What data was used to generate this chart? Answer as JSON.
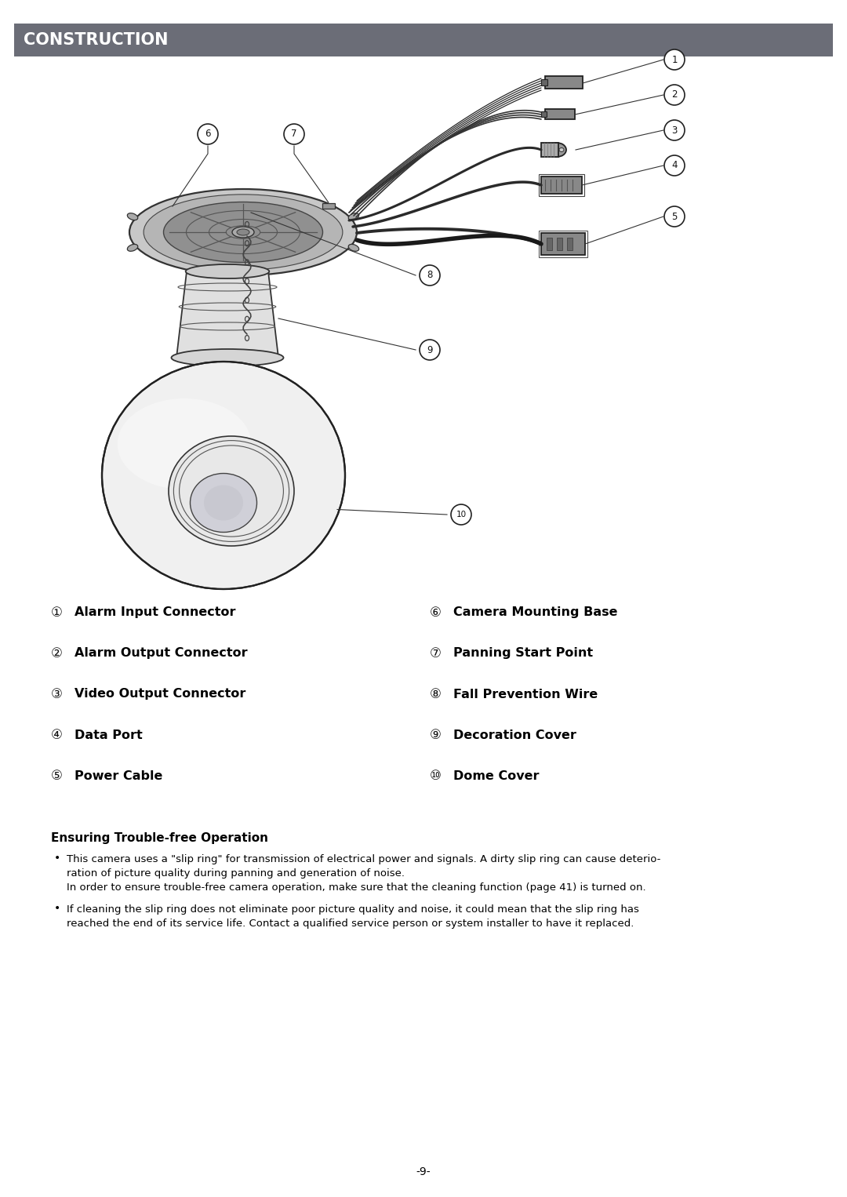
{
  "title": "CONSTRUCTION",
  "title_bg_color": "#6b6d77",
  "title_text_color": "#ffffff",
  "page_bg_color": "#ffffff",
  "page_number": "-9-",
  "left_labels": [
    {
      "num": "①",
      "text": "Alarm Input Connector"
    },
    {
      "num": "②",
      "text": "Alarm Output Connector"
    },
    {
      "num": "③",
      "text": "Video Output Connector"
    },
    {
      "num": "④",
      "text": "Data Port"
    },
    {
      "num": "⑤",
      "text": "Power Cable"
    }
  ],
  "right_labels": [
    {
      "num": "⑥",
      "text": "Camera Mounting Base"
    },
    {
      "num": "⑦",
      "text": "Panning Start Point"
    },
    {
      "num": "⑧",
      "text": "Fall Prevention Wire"
    },
    {
      "num": "⑨",
      "text": "Decoration Cover"
    },
    {
      "num": "⑩",
      "text": "Dome Cover"
    }
  ],
  "section_title": "Ensuring Trouble-free Operation",
  "bullet1_line1": "This camera uses a \"slip ring\" for transmission of electrical power and signals. A dirty slip ring can cause deterio-",
  "bullet1_line2": "ration of picture quality during panning and generation of noise.",
  "bullet1_line3": "In order to ensure trouble-free camera operation, make sure that the cleaning function (page 41) is turned on.",
  "bullet2_line1": "If cleaning the slip ring does not eliminate poor picture quality and noise, it could mean that the slip ring has",
  "bullet2_line2": "reached the end of its service life. Contact a qualified service person or system installer to have it replaced."
}
